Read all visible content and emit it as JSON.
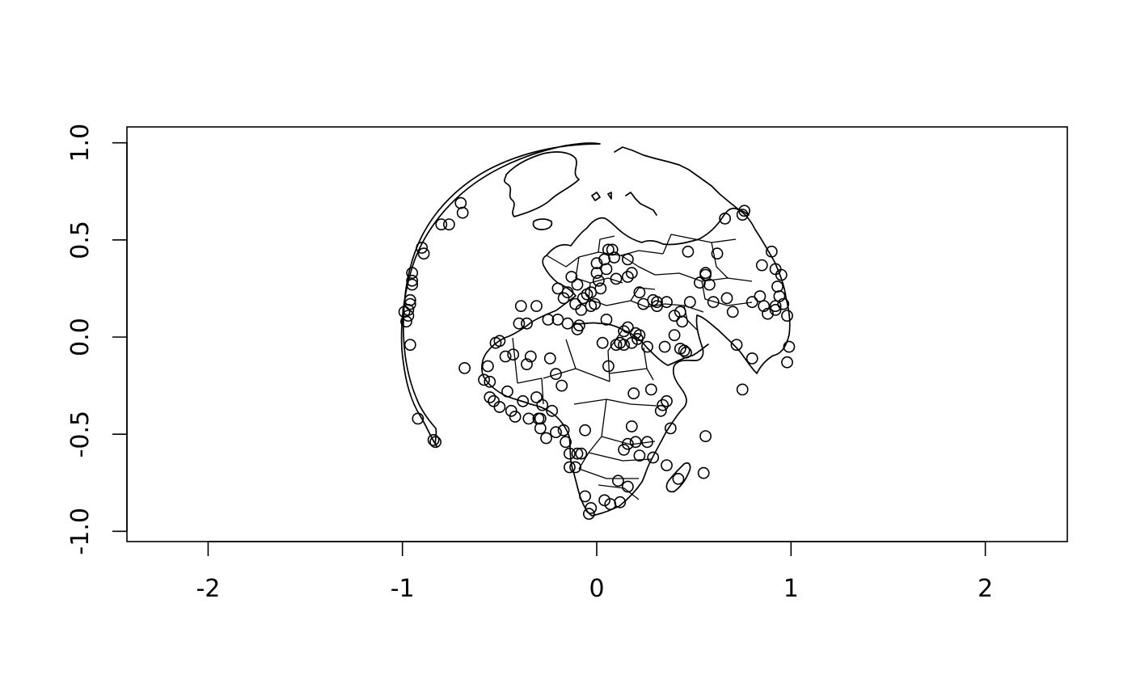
{
  "chart_data": {
    "type": "scatter",
    "title": "",
    "xlabel": "",
    "ylabel": "",
    "xlim": [
      -2.4,
      2.4
    ],
    "ylim": [
      -1.05,
      1.08
    ],
    "xticks": [
      -2,
      -1,
      0,
      1,
      2
    ],
    "xtick_labels": [
      "-2",
      "-1",
      "0",
      "1",
      "2"
    ],
    "yticks": [
      -1.0,
      -0.5,
      0.0,
      0.5,
      1.0
    ],
    "ytick_labels": [
      "-1.0",
      "-0.5",
      "0.0",
      "0.5",
      "1.0"
    ],
    "grid": false,
    "legend": "none",
    "basemap": "world country borders, orthographic projection centered on Europe/Africa",
    "point_style": "open-circle",
    "series": [
      {
        "x": [
          -0.7,
          -0.69,
          -0.8,
          -0.76,
          -0.9,
          -0.89,
          -0.95,
          -0.95,
          -0.95,
          -0.96,
          -0.96,
          -0.97,
          -0.97,
          -0.98,
          -0.99,
          -0.96,
          -0.92,
          -0.84,
          -0.83,
          -0.68,
          -0.56,
          -0.55,
          -0.58,
          -0.55,
          -0.53,
          -0.5,
          -0.46,
          -0.44,
          -0.42,
          -0.38,
          -0.35,
          -0.31,
          -0.3,
          -0.29,
          -0.26,
          -0.23,
          -0.21,
          -0.17,
          -0.16,
          -0.14,
          -0.1,
          -0.06,
          -0.04,
          -0.36,
          -0.39,
          -0.4,
          -0.31,
          -0.25,
          -0.2,
          -0.15,
          -0.11,
          -0.1,
          -0.09,
          -0.07,
          -0.05,
          -0.03,
          -0.01,
          0.0,
          0.02,
          0.04,
          0.06,
          0.08,
          0.1,
          0.16,
          0.18,
          0.22,
          0.24,
          0.29,
          0.31,
          0.36,
          0.4,
          0.43,
          0.45,
          0.48,
          0.53,
          0.56,
          0.62,
          0.66,
          0.7,
          0.75,
          0.76,
          0.8,
          0.84,
          0.86,
          0.9,
          0.92,
          0.93,
          0.95,
          0.98,
          0.99,
          0.98,
          0.94,
          0.92,
          0.85,
          0.8,
          0.75,
          0.72,
          0.47,
          0.58,
          0.56,
          0.6,
          0.67,
          0.88,
          0.92,
          0.96,
          0.18,
          0.2,
          0.22,
          0.21,
          0.14,
          0.05,
          0.19,
          0.28,
          0.34,
          0.38,
          0.36,
          0.33,
          0.29,
          0.26,
          0.22,
          0.18,
          0.16,
          0.14,
          0.11,
          0.2,
          0.16,
          0.12,
          0.07,
          0.04,
          -0.03,
          -0.06,
          -0.08,
          -0.11,
          -0.14,
          -0.18,
          -0.21,
          -0.24,
          -0.28,
          -0.29,
          -0.34,
          -0.36,
          -0.43,
          -0.47,
          -0.5,
          -0.52,
          0.36,
          0.42,
          0.56,
          0.55,
          0.06,
          0.1,
          0.12,
          0.14,
          0.16,
          0.03,
          -0.1,
          -0.13,
          -0.15,
          -0.2,
          -0.17,
          -0.08,
          -0.03,
          0.01,
          0.05,
          0.09,
          0.0,
          0.16,
          0.31,
          0.26,
          0.4,
          0.35,
          0.43,
          0.44,
          0.46
        ],
        "y": [
          0.69,
          0.64,
          0.58,
          0.58,
          0.46,
          0.43,
          0.33,
          0.29,
          0.27,
          0.19,
          0.17,
          0.14,
          0.11,
          0.08,
          0.13,
          -0.04,
          -0.42,
          -0.53,
          -0.54,
          -0.16,
          -0.15,
          -0.23,
          -0.22,
          -0.31,
          -0.33,
          -0.36,
          -0.28,
          -0.38,
          -0.41,
          -0.33,
          -0.42,
          -0.31,
          -0.42,
          -0.42,
          -0.52,
          -0.38,
          -0.49,
          -0.48,
          -0.54,
          -0.67,
          -0.6,
          -0.48,
          -0.91,
          0.07,
          0.16,
          0.07,
          0.16,
          0.09,
          0.09,
          0.07,
          0.17,
          0.04,
          0.06,
          0.2,
          0.22,
          0.23,
          0.17,
          0.33,
          0.25,
          0.4,
          0.45,
          0.45,
          0.3,
          0.4,
          0.33,
          0.23,
          0.17,
          0.19,
          0.16,
          0.18,
          0.11,
          -0.06,
          -0.07,
          0.18,
          0.28,
          0.32,
          0.43,
          0.61,
          0.13,
          0.63,
          0.65,
          0.18,
          0.21,
          0.16,
          0.44,
          0.35,
          0.26,
          0.32,
          0.11,
          -0.05,
          -0.13,
          0.21,
          0.16,
          0.37,
          -0.11,
          -0.27,
          -0.04,
          0.44,
          0.27,
          0.33,
          0.18,
          0.2,
          0.12,
          0.14,
          0.17,
          -0.03,
          0.02,
          0.01,
          -0.01,
          -0.04,
          0.09,
          -0.29,
          -0.27,
          -0.35,
          -0.47,
          -0.33,
          -0.38,
          -0.62,
          -0.54,
          -0.61,
          -0.46,
          -0.55,
          -0.58,
          -0.74,
          -0.54,
          -0.77,
          -0.85,
          -0.86,
          -0.84,
          -0.88,
          -0.82,
          -0.6,
          -0.67,
          -0.6,
          -0.25,
          -0.19,
          -0.11,
          -0.35,
          -0.47,
          -0.1,
          -0.14,
          -0.09,
          -0.1,
          -0.02,
          -0.03,
          -0.66,
          -0.73,
          -0.51,
          -0.7,
          -0.15,
          -0.04,
          -0.03,
          0.03,
          0.05,
          -0.03,
          0.27,
          0.31,
          0.23,
          0.25,
          0.2,
          0.14,
          0.16,
          0.29,
          0.35,
          0.41,
          0.38,
          0.31,
          0.18,
          -0.05,
          0.01,
          -0.05,
          0.13,
          0.08,
          -0.08
        ]
      }
    ]
  }
}
